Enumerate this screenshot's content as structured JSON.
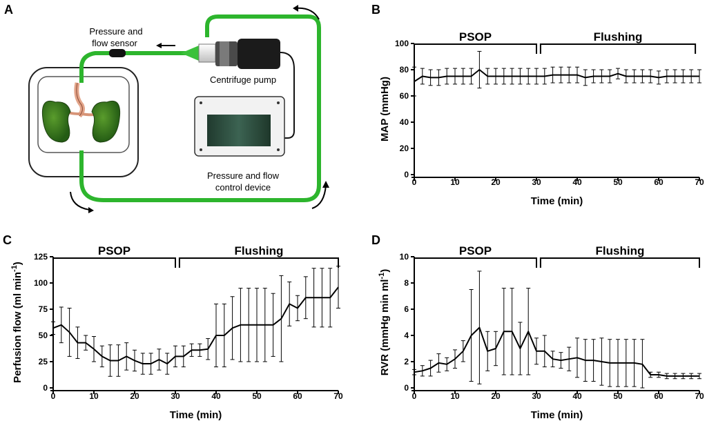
{
  "panel_labels": {
    "a": "A",
    "b": "B",
    "c": "C",
    "d": "D"
  },
  "diagram": {
    "sensor_label_1": "Pressure and",
    "sensor_label_2": "flow sensor",
    "pump_label": "Centrifuge pump",
    "control_label_1": "Pressure and flow",
    "control_label_2": "control device",
    "colors": {
      "tubing": "#2db52d",
      "kidney": "#2f7a1a",
      "vessel": "#e3a58a",
      "pump_body": "#1b1b1b",
      "screen": "#2e4d3e"
    }
  },
  "chart_data": [
    {
      "id": "B",
      "type": "line",
      "title": "",
      "xlabel": "Time (min)",
      "ylabel": "MAP (mmHg)",
      "xlim": [
        0,
        70
      ],
      "ylim": [
        0,
        100
      ],
      "xticks": [
        0,
        10,
        20,
        30,
        40,
        50,
        60,
        70
      ],
      "yticks": [
        0,
        20,
        40,
        60,
        80,
        100
      ],
      "phases": [
        {
          "label": "PSOP",
          "start": 0,
          "end": 30
        },
        {
          "label": "Flushing",
          "start": 31,
          "end": 69
        }
      ],
      "series": [
        {
          "name": "MAP",
          "x": [
            0,
            2,
            4,
            6,
            8,
            10,
            12,
            14,
            16,
            18,
            20,
            22,
            24,
            26,
            28,
            30,
            32,
            34,
            36,
            38,
            40,
            42,
            44,
            46,
            48,
            50,
            52,
            54,
            56,
            58,
            60,
            62,
            64,
            66,
            68,
            70
          ],
          "y": [
            71,
            75,
            74,
            74,
            75,
            75,
            75,
            75,
            80,
            75,
            75,
            75,
            75,
            75,
            75,
            75,
            75,
            76,
            76,
            76,
            76,
            74,
            75,
            75,
            75,
            77,
            75,
            75,
            75,
            75,
            74,
            75,
            75,
            75,
            75,
            75
          ],
          "err": [
            11,
            6,
            6,
            6,
            6,
            6,
            6,
            6,
            14,
            6,
            6,
            6,
            6,
            6,
            6,
            6,
            6,
            6,
            6,
            6,
            6,
            6,
            5,
            5,
            5,
            4,
            5,
            5,
            5,
            5,
            5,
            5,
            5,
            5,
            5,
            5
          ]
        }
      ]
    },
    {
      "id": "C",
      "type": "line",
      "title": "",
      "xlabel": "Time (min)",
      "ylabel": "Perfusion flow (ml min",
      "ylabel_sup": "-1",
      "ylabel_end": ")",
      "xlim": [
        0,
        70
      ],
      "ylim": [
        0,
        125
      ],
      "xticks": [
        0,
        10,
        20,
        30,
        40,
        50,
        60,
        70
      ],
      "yticks": [
        0,
        25,
        50,
        75,
        100,
        125
      ],
      "phases": [
        {
          "label": "PSOP",
          "start": 0,
          "end": 30
        },
        {
          "label": "Flushing",
          "start": 31,
          "end": 70
        }
      ],
      "series": [
        {
          "name": "Flow",
          "x": [
            0,
            2,
            4,
            6,
            8,
            10,
            12,
            14,
            16,
            18,
            20,
            22,
            24,
            26,
            28,
            30,
            32,
            34,
            36,
            38,
            40,
            42,
            44,
            46,
            48,
            50,
            52,
            54,
            56,
            58,
            60,
            62,
            64,
            66,
            68,
            70
          ],
          "y": [
            57,
            60,
            53,
            43,
            43,
            37,
            30,
            26,
            26,
            30,
            26,
            23,
            23,
            27,
            23,
            30,
            30,
            36,
            36,
            37,
            50,
            50,
            57,
            60,
            60,
            60,
            60,
            60,
            66,
            80,
            76,
            86,
            86,
            86,
            86,
            96
          ],
          "err": [
            6,
            17,
            23,
            15,
            7,
            12,
            10,
            15,
            15,
            13,
            10,
            10,
            10,
            10,
            10,
            10,
            10,
            6,
            6,
            10,
            30,
            30,
            30,
            35,
            35,
            35,
            35,
            30,
            41,
            21,
            12,
            20,
            28,
            28,
            28,
            20
          ]
        }
      ]
    },
    {
      "id": "D",
      "type": "line",
      "title": "",
      "xlabel": "Time (min)",
      "ylabel": "RVR (mmHg min ml",
      "ylabel_sup": "-1",
      "ylabel_end": ")",
      "xlim": [
        0,
        70
      ],
      "ylim": [
        0,
        10
      ],
      "xticks": [
        0,
        10,
        20,
        30,
        40,
        50,
        60,
        70
      ],
      "yticks": [
        0,
        2,
        4,
        6,
        8,
        10
      ],
      "phases": [
        {
          "label": "PSOP",
          "start": 0,
          "end": 30
        },
        {
          "label": "Flushing",
          "start": 31,
          "end": 70
        }
      ],
      "series": [
        {
          "name": "RVR",
          "x": [
            0,
            2,
            4,
            6,
            8,
            10,
            12,
            14,
            16,
            18,
            20,
            22,
            24,
            26,
            28,
            30,
            32,
            34,
            36,
            38,
            40,
            42,
            44,
            46,
            48,
            50,
            52,
            54,
            56,
            58,
            60,
            62,
            64,
            66,
            68,
            70
          ],
          "y": [
            1.2,
            1.3,
            1.5,
            1.9,
            1.8,
            2.2,
            2.8,
            4.0,
            4.6,
            2.8,
            3.0,
            4.3,
            4.3,
            3.0,
            4.3,
            2.8,
            2.8,
            2.2,
            2.1,
            2.2,
            2.3,
            2.1,
            2.1,
            2.0,
            1.9,
            1.9,
            1.9,
            1.9,
            1.8,
            1.0,
            1.0,
            0.9,
            0.9,
            0.9,
            0.9,
            0.9
          ],
          "err": [
            0.2,
            0.4,
            0.6,
            0.7,
            0.5,
            0.7,
            0.8,
            3.5,
            4.3,
            1.5,
            1.3,
            3.3,
            3.3,
            2.0,
            3.3,
            1.0,
            1.2,
            0.6,
            0.6,
            0.9,
            1.5,
            1.6,
            1.6,
            1.8,
            1.8,
            1.8,
            1.8,
            1.8,
            1.9,
            0.2,
            0.2,
            0.2,
            0.2,
            0.2,
            0.2,
            0.2
          ]
        }
      ]
    }
  ]
}
